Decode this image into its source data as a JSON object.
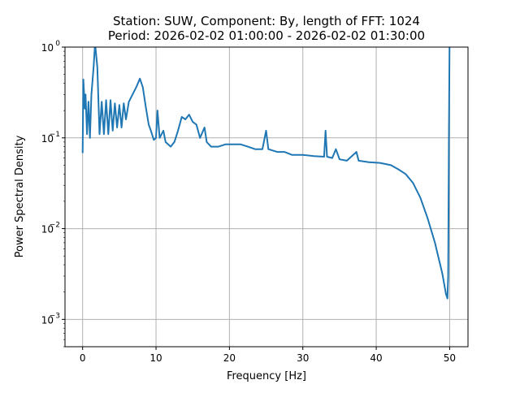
{
  "chart_data": {
    "type": "line",
    "title": "Station: SUW, Component: By, length of FFT: 1024",
    "subtitle": "Period: 2026-02-02 01:00:00 - 2026-02-02 01:30:00",
    "xlabel": "Frequency [Hz]",
    "ylabel": "Power Spectral Density",
    "xlim": [
      -2.4,
      52.5
    ],
    "ylim": [
      0.0005,
      1
    ],
    "yscale": "log",
    "grid": true,
    "xticks": [
      0,
      10,
      20,
      30,
      40,
      50
    ],
    "xtick_labels": [
      "0",
      "10",
      "20",
      "30",
      "40",
      "50"
    ],
    "yticks": [
      0.001,
      0.01,
      0.1,
      1
    ],
    "ytick_labels": [
      {
        "base": "10",
        "exp": "−3"
      },
      {
        "base": "10",
        "exp": "−2"
      },
      {
        "base": "10",
        "exp": "−1"
      },
      {
        "base": "10",
        "exp": "0"
      }
    ],
    "color": "#1f77b4",
    "series": [
      {
        "name": "PSD",
        "x": [
          0,
          0.1,
          0.3,
          0.4,
          0.6,
          0.8,
          1.0,
          1.2,
          1.5,
          1.7,
          2.0,
          2.3,
          2.6,
          2.9,
          3.2,
          3.5,
          3.8,
          4.1,
          4.4,
          4.7,
          5.0,
          5.3,
          5.6,
          5.9,
          6.3,
          6.8,
          7.3,
          7.8,
          8.2,
          8.6,
          9.0,
          9.3,
          9.7,
          10.0,
          10.2,
          10.5,
          11.0,
          11.3,
          12.0,
          12.5,
          13.0,
          13.5,
          14.0,
          14.5,
          15.0,
          15.5,
          16.0,
          16.6,
          16.9,
          17.5,
          18.5,
          19.5,
          20.5,
          21.5,
          22.5,
          23.5,
          24.5,
          25.0,
          25.3,
          26.5,
          27.5,
          28.5,
          30.0,
          31.5,
          32.9,
          33.1,
          33.3,
          34.0,
          34.5,
          35.0,
          36.0,
          37.3,
          37.6,
          39.0,
          40.5,
          42.0,
          43.0,
          44.0,
          45.0,
          46.0,
          47.0,
          48.0,
          49.0,
          49.5,
          49.7,
          49.8,
          49.9,
          50.0
        ],
        "y": [
          0.068,
          0.44,
          0.21,
          0.3,
          0.11,
          0.25,
          0.1,
          0.3,
          0.6,
          1.1,
          0.6,
          0.11,
          0.25,
          0.11,
          0.26,
          0.11,
          0.26,
          0.12,
          0.24,
          0.13,
          0.23,
          0.13,
          0.24,
          0.16,
          0.25,
          0.3,
          0.36,
          0.45,
          0.36,
          0.22,
          0.14,
          0.12,
          0.095,
          0.1,
          0.2,
          0.1,
          0.12,
          0.09,
          0.08,
          0.09,
          0.12,
          0.17,
          0.16,
          0.18,
          0.15,
          0.14,
          0.1,
          0.13,
          0.09,
          0.08,
          0.08,
          0.085,
          0.085,
          0.085,
          0.08,
          0.075,
          0.075,
          0.12,
          0.075,
          0.07,
          0.07,
          0.065,
          0.065,
          0.063,
          0.062,
          0.12,
          0.062,
          0.06,
          0.075,
          0.058,
          0.056,
          0.07,
          0.056,
          0.054,
          0.053,
          0.05,
          0.045,
          0.04,
          0.032,
          0.022,
          0.013,
          0.007,
          0.0032,
          0.0019,
          0.0017,
          0.003,
          0.1,
          1.5
        ]
      }
    ]
  }
}
